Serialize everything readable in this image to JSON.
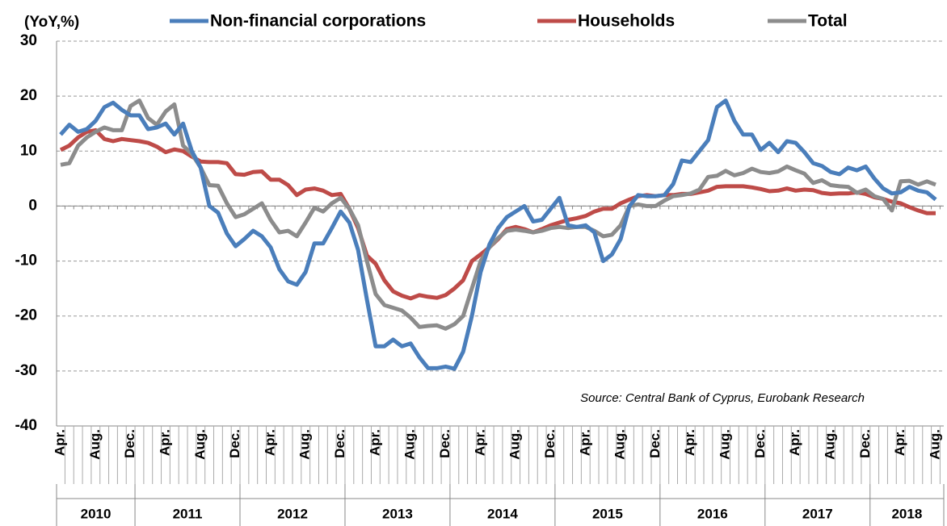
{
  "chart_data": {
    "type": "line",
    "ylabel": "(YoY,%)",
    "annotation": "Source: Central Bank of Cyprus, Eurobank Research",
    "categories": [
      "Apr.",
      null,
      null,
      null,
      "Aug.",
      null,
      null,
      null,
      "Dec.",
      null,
      null,
      null,
      "Apr.",
      null,
      null,
      null,
      "Aug.",
      null,
      null,
      null,
      "Dec.",
      null,
      null,
      null,
      "Apr.",
      null,
      null,
      null,
      "Aug.",
      null,
      null,
      null,
      "Dec.",
      null,
      null,
      null,
      "Apr.",
      null,
      null,
      null,
      "Aug.",
      null,
      null,
      null,
      "Dec.",
      null,
      null,
      null,
      "Apr.",
      null,
      null,
      null,
      "Aug.",
      null,
      null,
      null,
      "Dec.",
      null,
      null,
      null,
      "Apr.",
      null,
      null,
      null,
      "Aug.",
      null,
      null,
      null,
      "Dec.",
      null,
      null,
      null,
      "Apr.",
      null,
      null,
      null,
      "Aug.",
      null,
      null,
      null,
      "Dec.",
      null,
      null,
      null,
      "Apr.",
      null,
      null,
      null,
      "Aug.",
      null,
      null,
      null,
      "Dec.",
      null,
      null,
      null,
      "Apr.",
      null,
      null,
      null,
      "Aug."
    ],
    "years": [
      "2010",
      "2011",
      "2012",
      "2013",
      "2014",
      "2015",
      "2016",
      "2017",
      "2018"
    ],
    "series": [
      {
        "name": "Non-financial corporations",
        "color": "#4a7ebb",
        "values": [
          13,
          14.8,
          13.5,
          14,
          15.5,
          18,
          18.8,
          17.5,
          16.5,
          16.5,
          14,
          14.3,
          15,
          13,
          15,
          10,
          7,
          0,
          -1.2,
          -5,
          -7.3,
          -6,
          -4.5,
          -5.5,
          -7.5,
          -11.5,
          -13.7,
          -14.3,
          -12,
          -6.8,
          -6.8,
          -4,
          -1,
          -3,
          -8,
          -17,
          -25.5,
          -25.5,
          -24.3,
          -25.5,
          -25,
          -27.5,
          -29.5,
          -29.5,
          -29.2,
          -29.6,
          -26.5,
          -20,
          -12,
          -7,
          -4,
          -2,
          -1,
          0,
          -2.8,
          -2.5,
          -0.5,
          1.5,
          -3.5,
          -3.8,
          -3.5,
          -4.8,
          -10,
          -8.8,
          -6,
          0,
          2,
          1.8,
          1.8,
          2,
          4,
          8.3,
          8,
          10,
          12,
          18,
          19.2,
          15.5,
          13,
          13,
          10.2,
          11.5,
          9.8,
          11.8,
          11.5,
          9.8,
          7.8,
          7.3,
          6.2,
          5.8,
          7,
          6.5,
          7.2,
          5,
          3.2,
          2.3,
          2.5,
          3.5,
          2.8,
          2.5,
          1.2
        ]
      },
      {
        "name": "Households",
        "color": "#be4b48",
        "values": [
          10.2,
          11,
          12.5,
          13.5,
          13.8,
          12.2,
          11.8,
          12.2,
          12,
          11.8,
          11.5,
          10.8,
          9.8,
          10.3,
          10,
          9,
          8.1,
          8,
          8,
          7.8,
          5.8,
          5.7,
          6.2,
          6.3,
          4.8,
          4.8,
          3.8,
          2,
          3,
          3.2,
          2.8,
          2,
          2.2,
          -0.5,
          -4,
          -9,
          -10.5,
          -13.5,
          -15.5,
          -16.3,
          -16.8,
          -16.2,
          -16.5,
          -16.7,
          -16.2,
          -15,
          -13.5,
          -10,
          -8.8,
          -7.5,
          -6,
          -4.2,
          -3.8,
          -4.2,
          -4.8,
          -4.2,
          -3.5,
          -3,
          -2.5,
          -2.2,
          -1.8,
          -1,
          -0.5,
          -0.5,
          0.5,
          1.2,
          1.8,
          2,
          1.8,
          2,
          2,
          2.2,
          2.2,
          2.5,
          2.8,
          3.5,
          3.6,
          3.6,
          3.6,
          3.4,
          3.1,
          2.7,
          2.8,
          3.2,
          2.8,
          3,
          2.9,
          2.4,
          2.2,
          2.3,
          2.3,
          2.5,
          2.2,
          1.6,
          1.3,
          0.8,
          0.5,
          -0.2,
          -0.8,
          -1.3,
          -1.3
        ]
      },
      {
        "name": "Total",
        "color": "#8c8c8c",
        "values": [
          7.5,
          7.8,
          11,
          12.5,
          13.5,
          14.3,
          13.8,
          13.8,
          18.2,
          19.2,
          16,
          14.8,
          17.2,
          18.5,
          11,
          9.5,
          7,
          3.8,
          3.7,
          0.5,
          -2,
          -1.5,
          -0.5,
          0.5,
          -2.5,
          -4.8,
          -4.5,
          -5.5,
          -3,
          -0.3,
          -1,
          0.5,
          1.5,
          -0.5,
          -3.5,
          -10,
          -16,
          -18,
          -18.5,
          -19,
          -20.3,
          -22,
          -21.8,
          -21.7,
          -22.3,
          -21.5,
          -20,
          -15,
          -10,
          -7.5,
          -5.8,
          -4.5,
          -4.3,
          -4.5,
          -4.8,
          -4.5,
          -4,
          -3.8,
          -4,
          -3.8,
          -3.8,
          -4.5,
          -5.5,
          -5.2,
          -3.5,
          0,
          0.3,
          0,
          0,
          1,
          1.8,
          2,
          2.3,
          3,
          5.3,
          5.5,
          6.4,
          5.6,
          6,
          6.8,
          6.2,
          6,
          6.3,
          7.2,
          6.5,
          5.9,
          4.2,
          4.7,
          3.8,
          3.6,
          3.5,
          2.4,
          3,
          1.8,
          1.3,
          -0.8,
          4.5,
          4.6,
          3.9,
          4.5,
          3.9
        ]
      }
    ],
    "ylim": [
      -40,
      30
    ],
    "yticks": [
      30,
      20,
      10,
      0,
      -10,
      -20,
      -30,
      -40
    ],
    "grid": true
  }
}
